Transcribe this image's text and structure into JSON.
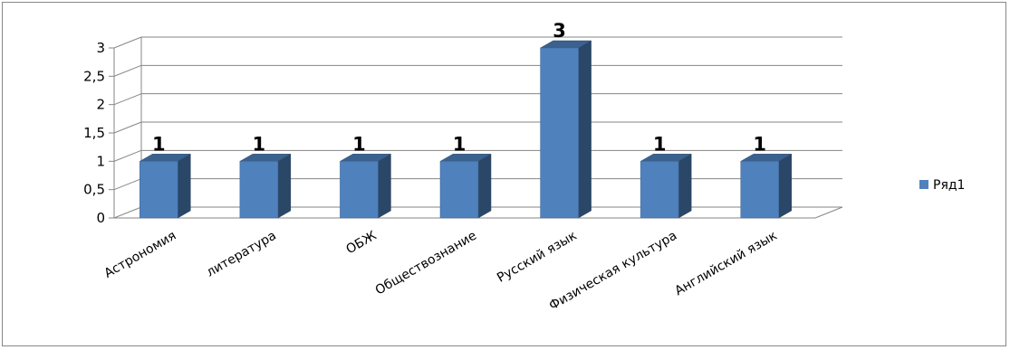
{
  "chart_data": {
    "type": "bar",
    "style": "3d-column",
    "categories": [
      "Астрономия",
      "литература",
      "ОБЖ",
      "Обществознание",
      "Русский язык",
      "Физическая культура",
      "Английский язык"
    ],
    "series": [
      {
        "name": "Ряд1",
        "values": [
          1,
          1,
          1,
          1,
          3,
          1,
          1
        ],
        "color": "#4F81BD"
      }
    ],
    "data_labels": [
      "1",
      "1",
      "1",
      "1",
      "3",
      "1",
      "1"
    ],
    "y_ticks": [
      "0",
      "0,5",
      "1",
      "1,5",
      "2",
      "2,5",
      "3"
    ],
    "ylim": [
      0,
      3
    ],
    "grid": true,
    "legend": "right",
    "title": "",
    "xlabel": "",
    "ylabel": ""
  }
}
